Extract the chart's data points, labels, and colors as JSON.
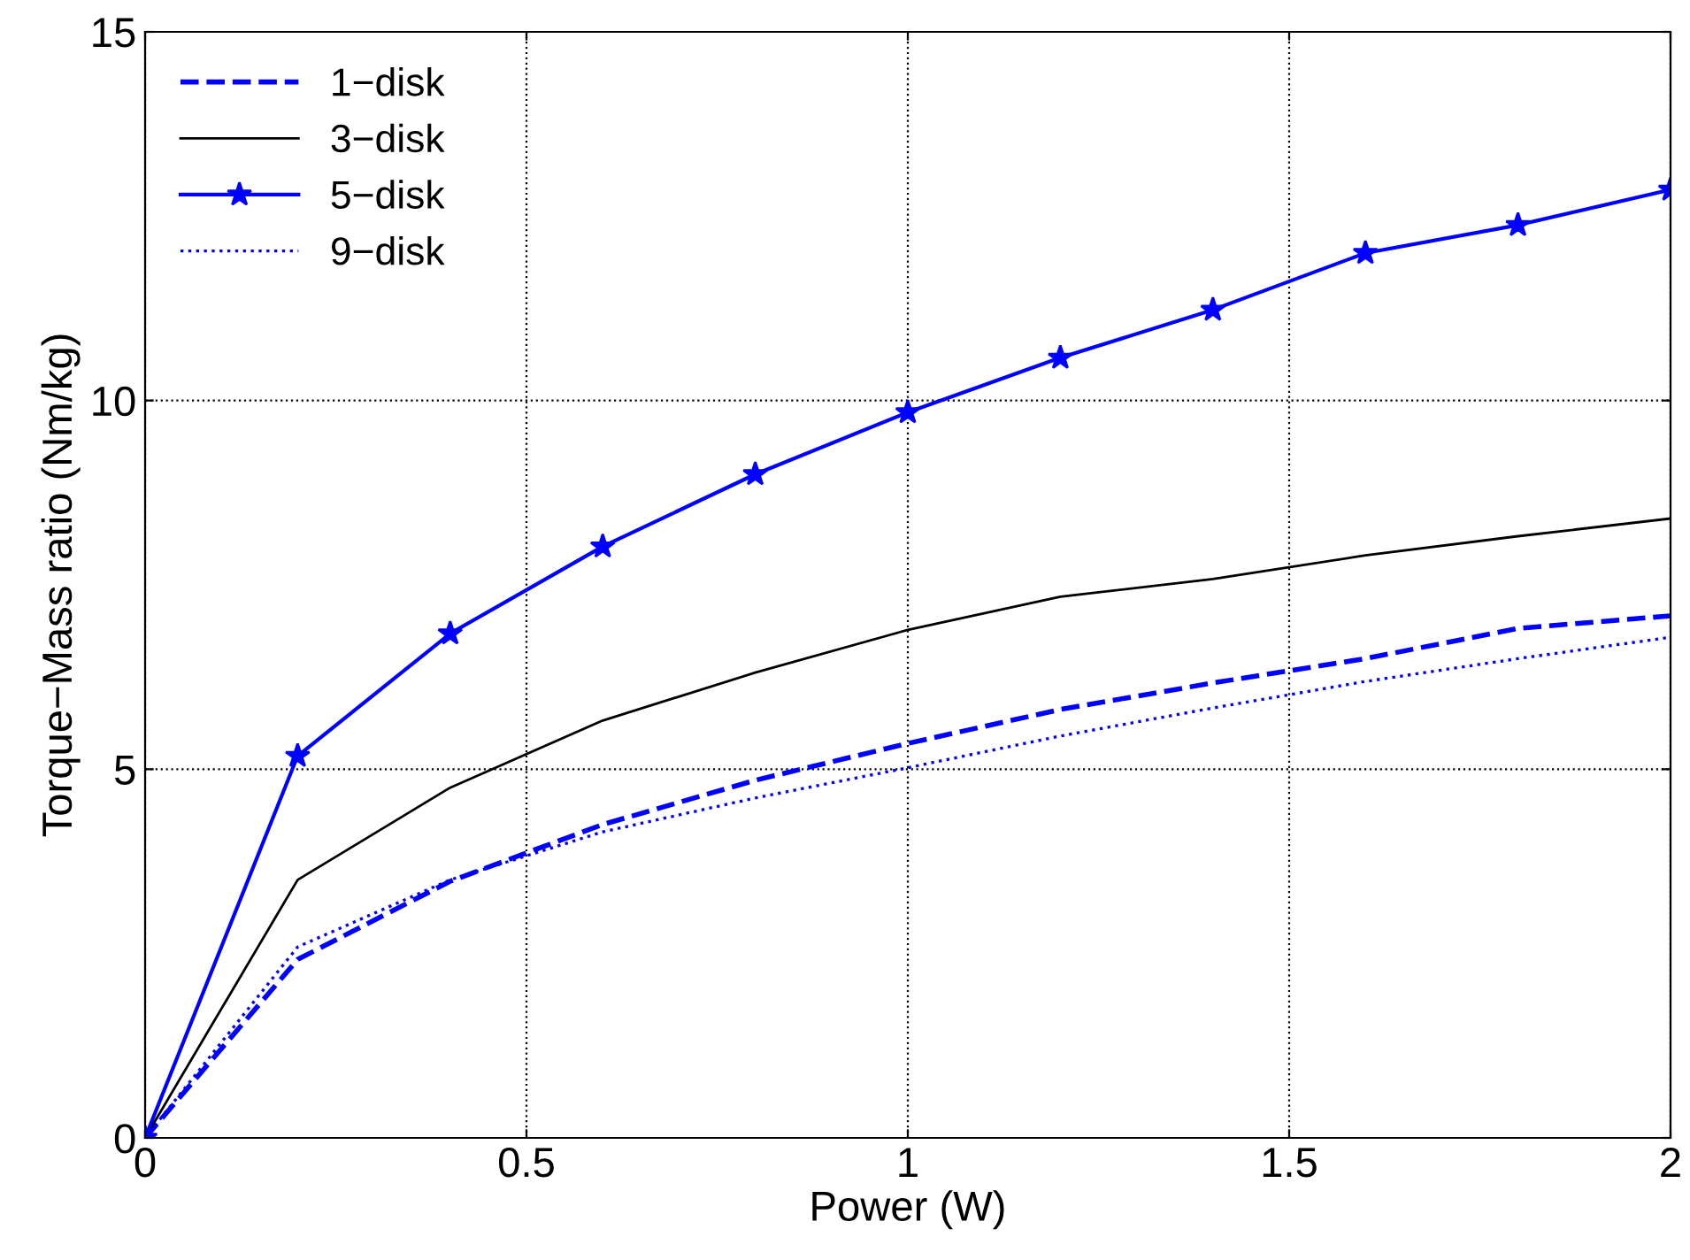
{
  "chart_data": {
    "type": "line",
    "xlabel": "Power (W)",
    "ylabel": "Torque−Mass ratio (Nm/kg)",
    "x": [
      0,
      0.2,
      0.4,
      0.6,
      0.8,
      1.0,
      1.2,
      1.4,
      1.6,
      1.8,
      2.0
    ],
    "series": [
      {
        "name": "1−disk",
        "color": "#0000ff",
        "line_style": "dashed",
        "marker": "none",
        "values": [
          0,
          2.42,
          3.48,
          4.25,
          4.85,
          5.35,
          5.81,
          6.17,
          6.5,
          6.91,
          7.08
        ]
      },
      {
        "name": "3−disk",
        "color": "#000000",
        "line_style": "solid",
        "marker": "none",
        "values": [
          0,
          3.5,
          4.75,
          5.66,
          6.31,
          6.89,
          7.34,
          7.58,
          7.9,
          8.16,
          8.4
        ]
      },
      {
        "name": "5−disk",
        "color": "#0000ff",
        "line_style": "solid",
        "marker": "star",
        "values": [
          0,
          5.18,
          6.84,
          8.02,
          9.0,
          9.84,
          10.58,
          11.23,
          12.0,
          12.38,
          12.86
        ]
      },
      {
        "name": "9−disk",
        "color": "#0000ff",
        "line_style": "dotted",
        "marker": "none",
        "values": [
          0,
          2.59,
          3.5,
          4.15,
          4.61,
          5.02,
          5.45,
          5.83,
          6.19,
          6.5,
          6.79
        ]
      }
    ],
    "xlim": [
      0,
      2
    ],
    "xticks": [
      0,
      0.5,
      1,
      1.5,
      2
    ],
    "ylim": [
      0,
      15
    ],
    "yticks": [
      0,
      5,
      10,
      15
    ],
    "grid": true,
    "legend": "top left"
  }
}
